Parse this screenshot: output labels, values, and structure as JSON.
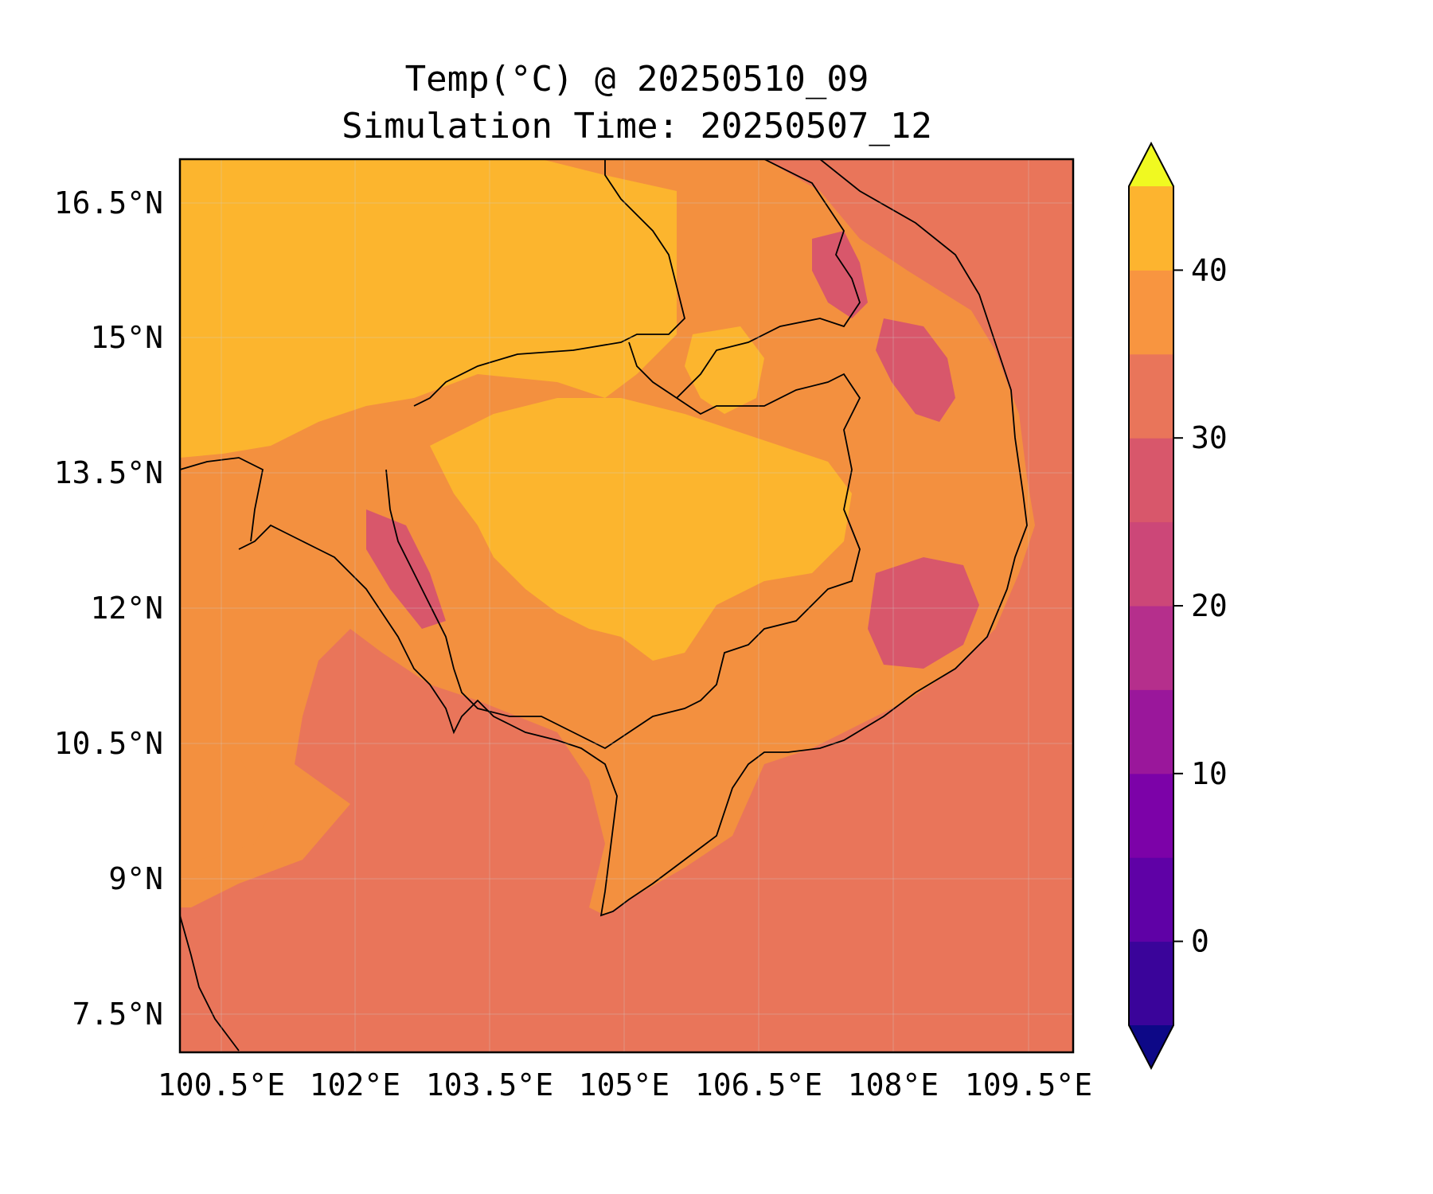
{
  "title": "Temp(°C) @ 20250510_09",
  "subtitle": "Simulation Time: 20250507_12",
  "map": {
    "x_ticks": [
      "100.5°E",
      "102°E",
      "103.5°E",
      "105°E",
      "106.5°E",
      "108°E",
      "109.5°E"
    ],
    "y_ticks": [
      "16.5°N",
      "15°N",
      "13.5°N",
      "12°N",
      "10.5°N",
      "9°N",
      "7.5°N"
    ],
    "lon_range": [
      100.0,
      110.0
    ],
    "lat_range": [
      7.1,
      17.0
    ],
    "grid": true,
    "background_level_color": "#e9755a"
  },
  "colorbar": {
    "ticks": [
      "0",
      "10",
      "20",
      "30",
      "40"
    ],
    "levels": [
      -5,
      0,
      5,
      10,
      15,
      20,
      25,
      30,
      35,
      40,
      45
    ],
    "extend": "both",
    "colors": [
      "#1b0a8f",
      "#3a049a",
      "#5f01a6",
      "#7c02a8",
      "#9a179b",
      "#b52f8c",
      "#cc4778",
      "#d8576b",
      "#e9755a",
      "#f89540",
      "#fdb42f",
      "#f0f921"
    ],
    "under_color": "#0d0887",
    "over_color": "#f0f921"
  }
}
